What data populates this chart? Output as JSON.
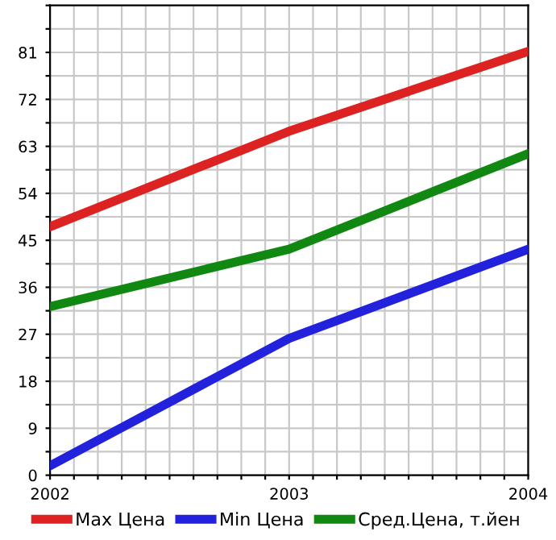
{
  "chart_data": {
    "type": "line",
    "x": [
      2002,
      2003,
      2004
    ],
    "series": [
      {
        "name": "Max Цена",
        "color": "#dd2222",
        "values": [
          47.6,
          65.9,
          81.2
        ]
      },
      {
        "name": "Min Цена",
        "color": "#2222dd",
        "values": [
          1.8,
          26.2,
          43.3
        ]
      },
      {
        "name": "Сред.Цена, т.йен",
        "color": "#118811",
        "values": [
          32.3,
          43.3,
          61.6
        ]
      }
    ],
    "xlim": [
      2002,
      2004
    ],
    "xticks": [
      2002,
      {
        "value": 2002.1,
        "label": null
      },
      {
        "value": 2002.2,
        "label": null
      },
      {
        "value": 2002.3,
        "label": null
      },
      {
        "value": 2002.4,
        "label": null
      },
      {
        "value": 2002.5,
        "label": null
      },
      {
        "value": 2002.6,
        "label": null
      },
      {
        "value": 2002.7,
        "label": null
      },
      {
        "value": 2002.8,
        "label": null
      },
      {
        "value": 2002.9,
        "label": null
      },
      2003,
      {
        "value": 2003.1,
        "label": null
      },
      {
        "value": 2003.2,
        "label": null
      },
      {
        "value": 2003.3,
        "label": null
      },
      {
        "value": 2003.4,
        "label": null
      },
      {
        "value": 2003.5,
        "label": null
      },
      {
        "value": 2003.6,
        "label": null
      },
      {
        "value": 2003.7,
        "label": null
      },
      {
        "value": 2003.8,
        "label": null
      },
      {
        "value": 2003.9,
        "label": null
      },
      2004
    ],
    "ylim": [
      0,
      90
    ],
    "yticks": [
      0,
      {
        "value": 4.5,
        "label": null
      },
      9,
      {
        "value": 13.5,
        "label": null
      },
      18,
      {
        "value": 22.5,
        "label": null
      },
      27,
      {
        "value": 31.5,
        "label": null
      },
      36,
      {
        "value": 40.5,
        "label": null
      },
      45,
      {
        "value": 49.5,
        "label": null
      },
      54,
      {
        "value": 58.5,
        "label": null
      },
      63,
      {
        "value": 67.5,
        "label": null
      },
      72,
      {
        "value": 76.5,
        "label": null
      },
      81,
      {
        "value": 85.5,
        "label": null
      },
      {
        "value": 90,
        "label": null
      }
    ],
    "grid": true,
    "legend": "bottom",
    "marker": "none",
    "line_style": "solid"
  }
}
